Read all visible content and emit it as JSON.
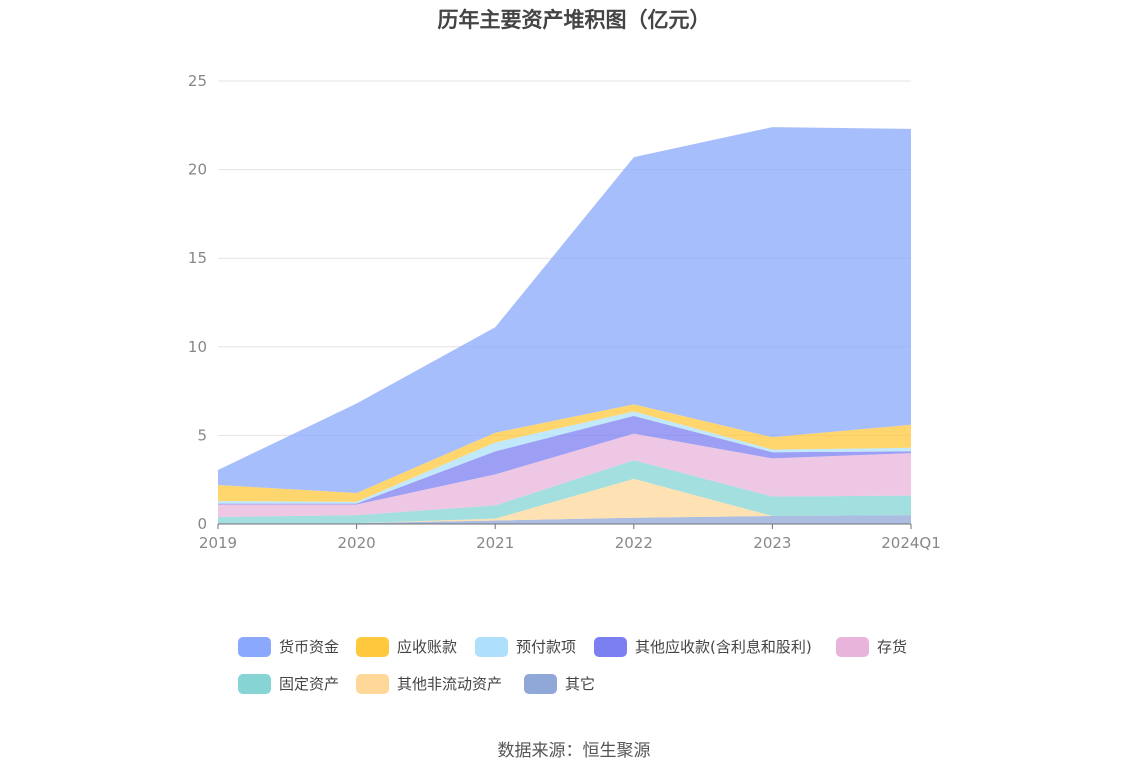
{
  "title": "历年主要资产堆积图（亿元）",
  "source": "数据来源：恒生聚源",
  "chart_data": {
    "type": "area",
    "stacked": true,
    "categories": [
      "2019",
      "2020",
      "2021",
      "2022",
      "2023",
      "2024Q1"
    ],
    "ylim": [
      0,
      25
    ],
    "yticks": [
      0,
      5,
      10,
      15,
      20,
      25
    ],
    "grid": true,
    "legend_position": "bottom",
    "series": [
      {
        "name": "其它",
        "color": "#8fa8d8",
        "values": [
          0.05,
          0.05,
          0.2,
          0.35,
          0.45,
          0.5
        ]
      },
      {
        "name": "其他非流动资产",
        "color": "#ffd899",
        "values": [
          0.0,
          0.0,
          0.1,
          2.2,
          0.0,
          0.0
        ]
      },
      {
        "name": "固定资产",
        "color": "#86d4d4",
        "values": [
          0.35,
          0.45,
          0.75,
          1.05,
          1.1,
          1.1
        ]
      },
      {
        "name": "存货",
        "color": "#e8b4dc",
        "values": [
          0.7,
          0.6,
          1.75,
          1.5,
          2.15,
          2.4
        ]
      },
      {
        "name": "其他应收款(含利息和股利)",
        "color": "#7b7ff0",
        "values": [
          0.05,
          0.05,
          1.3,
          1.0,
          0.35,
          0.1
        ]
      },
      {
        "name": "预付款项",
        "color": "#aee0fb",
        "values": [
          0.15,
          0.1,
          0.5,
          0.25,
          0.15,
          0.2
        ]
      },
      {
        "name": "应收账款",
        "color": "#ffc83d",
        "values": [
          0.9,
          0.5,
          0.55,
          0.4,
          0.7,
          1.3
        ]
      },
      {
        "name": "货币资金",
        "color": "#8aa8fc",
        "values": [
          0.85,
          5.05,
          5.95,
          13.95,
          17.5,
          16.7
        ]
      }
    ]
  },
  "legend": [
    {
      "name": "货币资金",
      "color": "#8aa8fc"
    },
    {
      "name": "应收账款",
      "color": "#ffc83d"
    },
    {
      "name": "预付款项",
      "color": "#aee0fb"
    },
    {
      "name": "其他应收款(含利息和股利)",
      "color": "#7b7ff0"
    },
    {
      "name": "存货",
      "color": "#e8b4dc"
    },
    {
      "name": "固定资产",
      "color": "#86d4d4"
    },
    {
      "name": "其他非流动资产",
      "color": "#ffd899"
    },
    {
      "name": "其它",
      "color": "#8fa8d8"
    }
  ]
}
